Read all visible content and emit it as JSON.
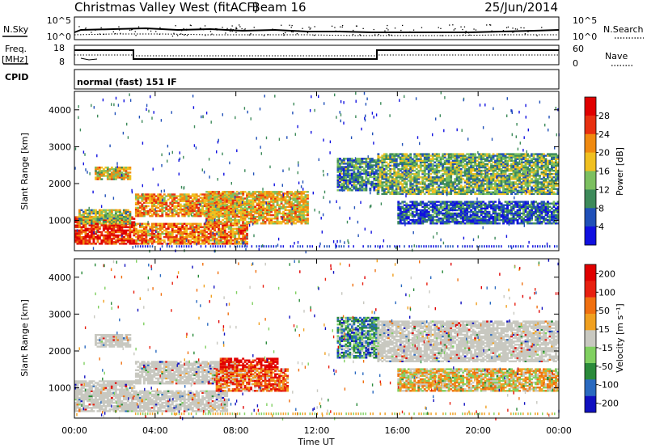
{
  "header": {
    "site": "Christmas Valley West (fitACF)",
    "beam": "Beam 16",
    "date": "25/Jun/2014"
  },
  "top_panels": {
    "nsky_label": "N.Sky",
    "nsky_ticks": [
      "10^5",
      "10^0"
    ],
    "nsearch_label": "N.Search",
    "nsearch_ticks": [
      "10^5",
      "10^0"
    ],
    "freq_label": "Freq.",
    "freq_unit": "[MHz]",
    "freq_ticks": [
      "18",
      "8"
    ],
    "nave_label": "Nave",
    "nave_ticks": [
      "60",
      "0"
    ],
    "cpid_label": "CPID",
    "cpid_value": "normal (fast) 151 IF"
  },
  "chart_data": [
    {
      "type": "heatmap",
      "quantity": "Power",
      "ylabel": "Slant Range [km]",
      "xlabel": "",
      "ylim": [
        180,
        4500
      ],
      "y_ticks": [
        "1000",
        "2000",
        "3000",
        "4000"
      ],
      "colorbar_label": "Power [dB]",
      "colorbar_ticks": [
        "4",
        "8",
        "12",
        "16",
        "20",
        "24",
        "28"
      ],
      "colors": [
        "#1010e0",
        "#2050b8",
        "#3d8a5a",
        "#7cc060",
        "#f0c020",
        "#f08a10",
        "#e83010",
        "#e00000"
      ],
      "bands": [
        {
          "t0": 0.0,
          "t1": 3.0,
          "r0": 350,
          "r1": 1100,
          "level": 0.85
        },
        {
          "t0": 0.2,
          "t1": 2.8,
          "r0": 900,
          "r1": 1300,
          "level": 0.45
        },
        {
          "t0": 1.0,
          "t1": 2.8,
          "r0": 2100,
          "r1": 2450,
          "level": 0.55
        },
        {
          "t0": 3.0,
          "t1": 8.0,
          "r0": 1100,
          "r1": 1700,
          "level": 0.65
        },
        {
          "t0": 3.0,
          "t1": 8.5,
          "r0": 350,
          "r1": 900,
          "level": 0.7
        },
        {
          "t0": 6.5,
          "t1": 11.5,
          "r0": 900,
          "r1": 1800,
          "level": 0.6
        },
        {
          "t0": 13.0,
          "t1": 15.0,
          "r0": 1800,
          "r1": 2700,
          "level": 0.3
        },
        {
          "t0": 15.0,
          "t1": 24.0,
          "r0": 1700,
          "r1": 2800,
          "level": 0.4
        },
        {
          "t0": 16.0,
          "t1": 24.0,
          "r0": 900,
          "r1": 1500,
          "level": 0.2
        }
      ]
    },
    {
      "type": "heatmap",
      "quantity": "Velocity",
      "ylabel": "Slant Range [km]",
      "xlabel": "Time UT",
      "ylim": [
        180,
        4500
      ],
      "y_ticks": [
        "1000",
        "2000",
        "3000",
        "4000"
      ],
      "x_ticks": [
        "00:00",
        "04:00",
        "08:00",
        "12:00",
        "16:00",
        "20:00",
        "00:00"
      ],
      "xlim": [
        0,
        24
      ],
      "colorbar_label": "Velocity [m s⁻¹]",
      "colorbar_ticks": [
        "200",
        "100",
        "50",
        "15",
        "-15",
        "-50",
        "-100",
        "-200"
      ],
      "colors": [
        "#1010c0",
        "#2a6ac0",
        "#2a8a3a",
        "#80d060",
        "#c8c8c0",
        "#f0a020",
        "#f07010",
        "#e82010",
        "#e00000"
      ],
      "bands": [
        {
          "t0": 0.0,
          "t1": 3.0,
          "r0": 350,
          "r1": 1200,
          "level": 0.5
        },
        {
          "t0": 1.0,
          "t1": 2.8,
          "r0": 2100,
          "r1": 2450,
          "level": 0.5
        },
        {
          "t0": 3.0,
          "t1": 8.0,
          "r0": 1100,
          "r1": 1700,
          "level": 0.5
        },
        {
          "t0": 3.0,
          "t1": 7.5,
          "r0": 350,
          "r1": 900,
          "level": 0.5
        },
        {
          "t0": 7.2,
          "t1": 10.0,
          "r0": 1500,
          "r1": 1800,
          "level": 0.95
        },
        {
          "t0": 7.0,
          "t1": 10.5,
          "r0": 900,
          "r1": 1500,
          "level": 0.72
        },
        {
          "t0": 13.0,
          "t1": 15.0,
          "r0": 1800,
          "r1": 2900,
          "level": 0.28
        },
        {
          "t0": 15.0,
          "t1": 24.0,
          "r0": 1700,
          "r1": 2800,
          "level": 0.5
        },
        {
          "t0": 16.0,
          "t1": 24.0,
          "r0": 900,
          "r1": 1500,
          "level": 0.55
        }
      ]
    }
  ]
}
